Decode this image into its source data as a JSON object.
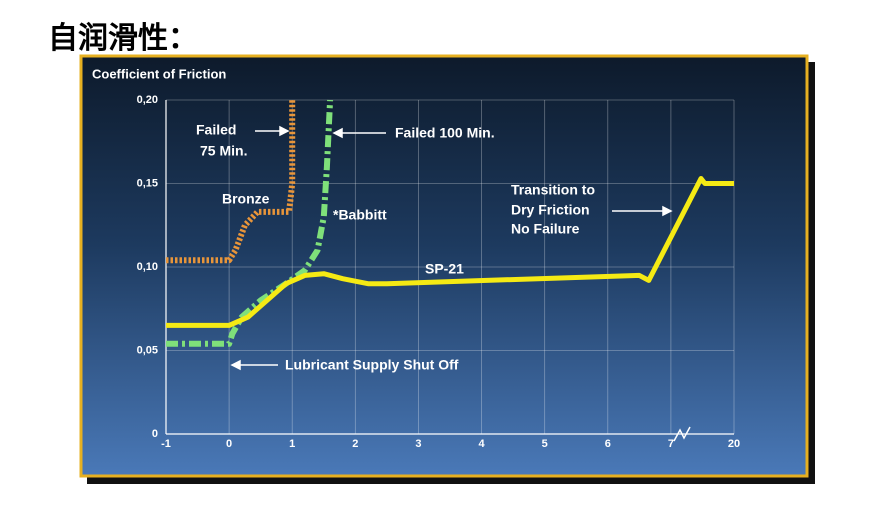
{
  "title": "自润滑性：",
  "chart_data": {
    "type": "line",
    "title": "Coefficient of Friction",
    "xlim": [
      -1,
      20
    ],
    "xbreak": 7,
    "xticks": [
      -1,
      0,
      1,
      2,
      3,
      4,
      5,
      6,
      7,
      20
    ],
    "ylim": [
      0,
      0.2
    ],
    "yticks": [
      0,
      {
        "value": 0.05,
        "label": "0,05"
      },
      {
        "value": 0.1,
        "label": "0,10"
      },
      {
        "value": 0.15,
        "label": "0,15"
      },
      {
        "value": 0.2,
        "label": "0,20"
      }
    ],
    "grid": true,
    "series": [
      {
        "name": "SP-21",
        "color": "#f5ea14",
        "style": "solid",
        "x": [
          -1,
          0,
          0.3,
          0.6,
          0.9,
          1.2,
          1.5,
          1.8,
          2.2,
          2.5,
          6.5,
          6.65,
          13.2,
          14,
          20
        ],
        "values": [
          0.065,
          0.065,
          0.07,
          0.08,
          0.09,
          0.095,
          0.096,
          0.093,
          0.09,
          0.09,
          0.095,
          0.092,
          0.153,
          0.15,
          0.15
        ]
      },
      {
        "name": "*Babbitt",
        "color": "#7fe07a",
        "style": "dashdot",
        "x": [
          -1,
          0,
          0.05,
          0.2,
          0.5,
          0.9,
          1.2,
          1.4,
          1.5,
          1.55,
          1.6
        ],
        "values": [
          0.054,
          0.054,
          0.06,
          0.07,
          0.08,
          0.09,
          0.098,
          0.11,
          0.13,
          0.16,
          0.2
        ]
      },
      {
        "name": "Bronze",
        "color": "#e8953a",
        "style": "dotted",
        "x": [
          -1,
          0,
          0.1,
          0.25,
          0.45,
          0.95,
          1,
          1
        ],
        "values": [
          0.104,
          0.104,
          0.11,
          0.125,
          0.133,
          0.133,
          0.15,
          0.2
        ]
      }
    ],
    "annotations": [
      "Failed",
      "75 Min.",
      "Failed 100 Min.",
      "Transition to",
      "Dry Friction",
      "No Failure",
      "Lubricant Supply Shut Off"
    ]
  }
}
